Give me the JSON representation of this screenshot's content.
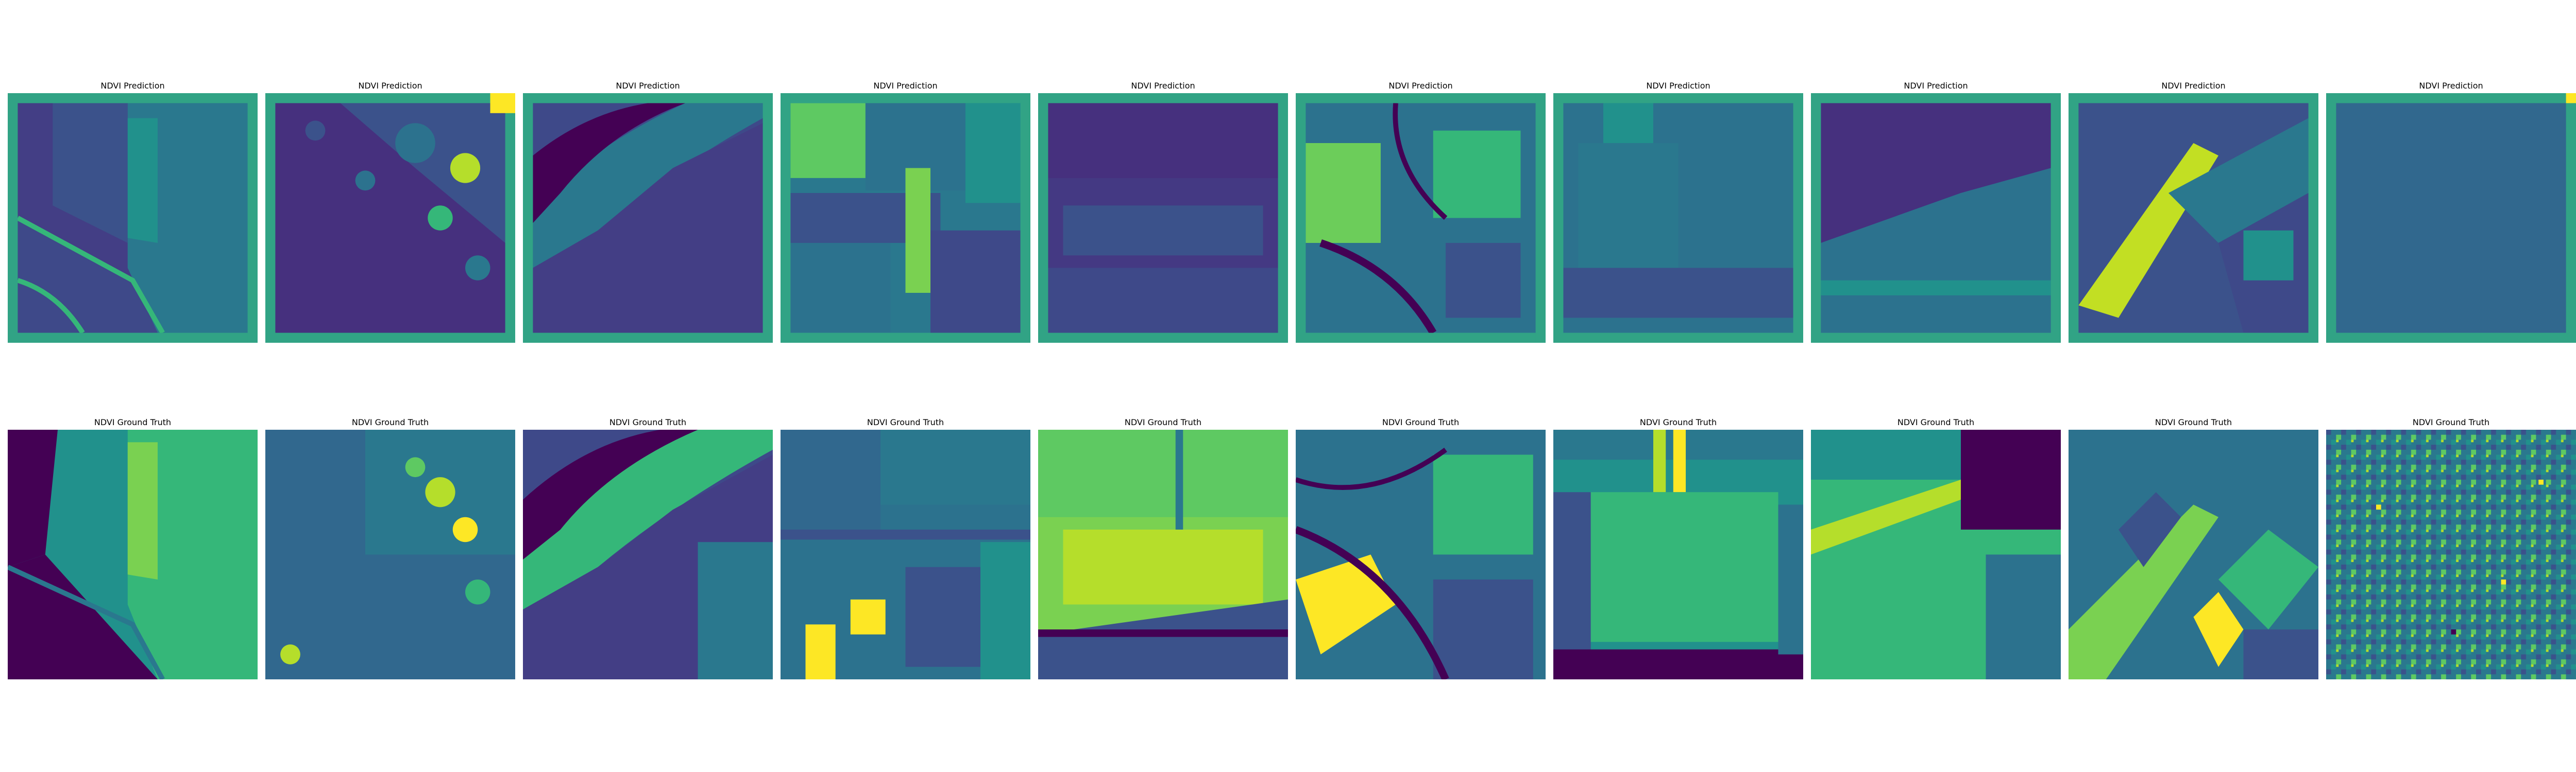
{
  "rows": [
    {
      "name": "prediction",
      "panels": [
        {
          "title": "NDVI Prediction"
        },
        {
          "title": "NDVI Prediction"
        },
        {
          "title": "NDVI Prediction"
        },
        {
          "title": "NDVI Prediction"
        },
        {
          "title": "NDVI Prediction"
        },
        {
          "title": "NDVI Prediction"
        },
        {
          "title": "NDVI Prediction"
        },
        {
          "title": "NDVI Prediction"
        },
        {
          "title": "NDVI Prediction"
        },
        {
          "title": "NDVI Prediction"
        }
      ]
    },
    {
      "name": "ground-truth",
      "panels": [
        {
          "title": "NDVI Ground Truth"
        },
        {
          "title": "NDVI Ground Truth"
        },
        {
          "title": "NDVI Ground Truth"
        },
        {
          "title": "NDVI Ground Truth"
        },
        {
          "title": "NDVI Ground Truth"
        },
        {
          "title": "NDVI Ground Truth"
        },
        {
          "title": "NDVI Ground Truth"
        },
        {
          "title": "NDVI Ground Truth"
        },
        {
          "title": "NDVI Ground Truth"
        },
        {
          "title": "NDVI Ground Truth"
        }
      ]
    }
  ],
  "colormap": "viridis",
  "colors": {
    "dark": "#440154",
    "mid_dark": "#3b528b",
    "mid": "#21918c",
    "mid_light": "#5ec962",
    "light": "#fde725"
  }
}
